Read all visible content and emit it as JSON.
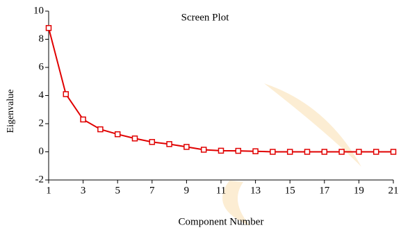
{
  "chart_data": {
    "type": "line",
    "title": "Screen Plot",
    "x_label": "Component Number",
    "y_label": "Eigenvalue",
    "x": [
      1,
      2,
      3,
      4,
      5,
      6,
      7,
      8,
      9,
      10,
      11,
      12,
      13,
      14,
      15,
      16,
      17,
      18,
      19,
      20,
      21
    ],
    "series": [
      {
        "name": "Eigenvalue",
        "color": "#e00000",
        "values": [
          8.8,
          4.1,
          2.3,
          1.6,
          1.25,
          0.95,
          0.7,
          0.55,
          0.35,
          0.15,
          0.08,
          0.07,
          0.04,
          0.0,
          0.0,
          0.0,
          0.0,
          0.0,
          0.0,
          0.0,
          0.0
        ]
      }
    ],
    "xlim": [
      1,
      21
    ],
    "xticks": [
      1,
      3,
      5,
      7,
      9,
      11,
      13,
      15,
      17,
      19,
      21
    ],
    "ylim": [
      -2,
      10
    ],
    "yticks": [
      -2,
      0,
      2,
      4,
      6,
      8,
      10
    ],
    "grid": false
  }
}
